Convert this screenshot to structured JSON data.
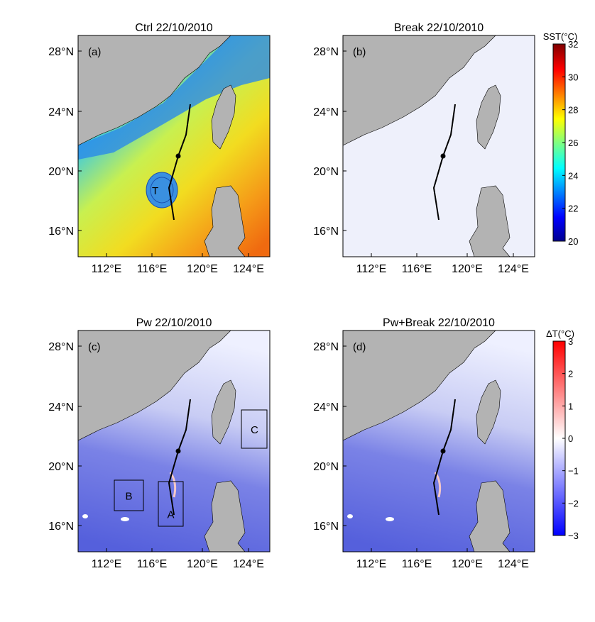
{
  "panels": [
    {
      "title": "Ctrl 22/10/2010",
      "label": "(a)",
      "field": "sst",
      "marker": "T",
      "boxes": []
    },
    {
      "title": "Break 22/10/2010",
      "label": "(b)",
      "field": "diff_small",
      "boxes": []
    },
    {
      "title": "Pw 22/10/2010",
      "label": "(c)",
      "field": "diff_cool",
      "boxes": [
        "A",
        "B",
        "C"
      ]
    },
    {
      "title": "Pw+Break 22/10/2010",
      "label": "(d)",
      "field": "diff_cool",
      "boxes": []
    }
  ],
  "x_ticks": [
    "112°E",
    "116°E",
    "120°E",
    "124°E"
  ],
  "y_ticks": [
    "28°N",
    "24°N",
    "20°N",
    "16°N"
  ],
  "colorbars": [
    {
      "title": "SST(°C)",
      "ticks": [
        "32",
        "30",
        "28",
        "26",
        "24",
        "22",
        "20"
      ],
      "range": [
        20,
        32
      ],
      "colormap": "jet"
    },
    {
      "title": "ΔT(°C)",
      "ticks": [
        "3",
        "2",
        "1",
        "0",
        "−1",
        "−2",
        "−3"
      ],
      "range": [
        -3,
        3
      ],
      "colormap": "blue-white-red"
    }
  ],
  "colors": {
    "land": "#b3b3b3",
    "track": "#000000"
  }
}
